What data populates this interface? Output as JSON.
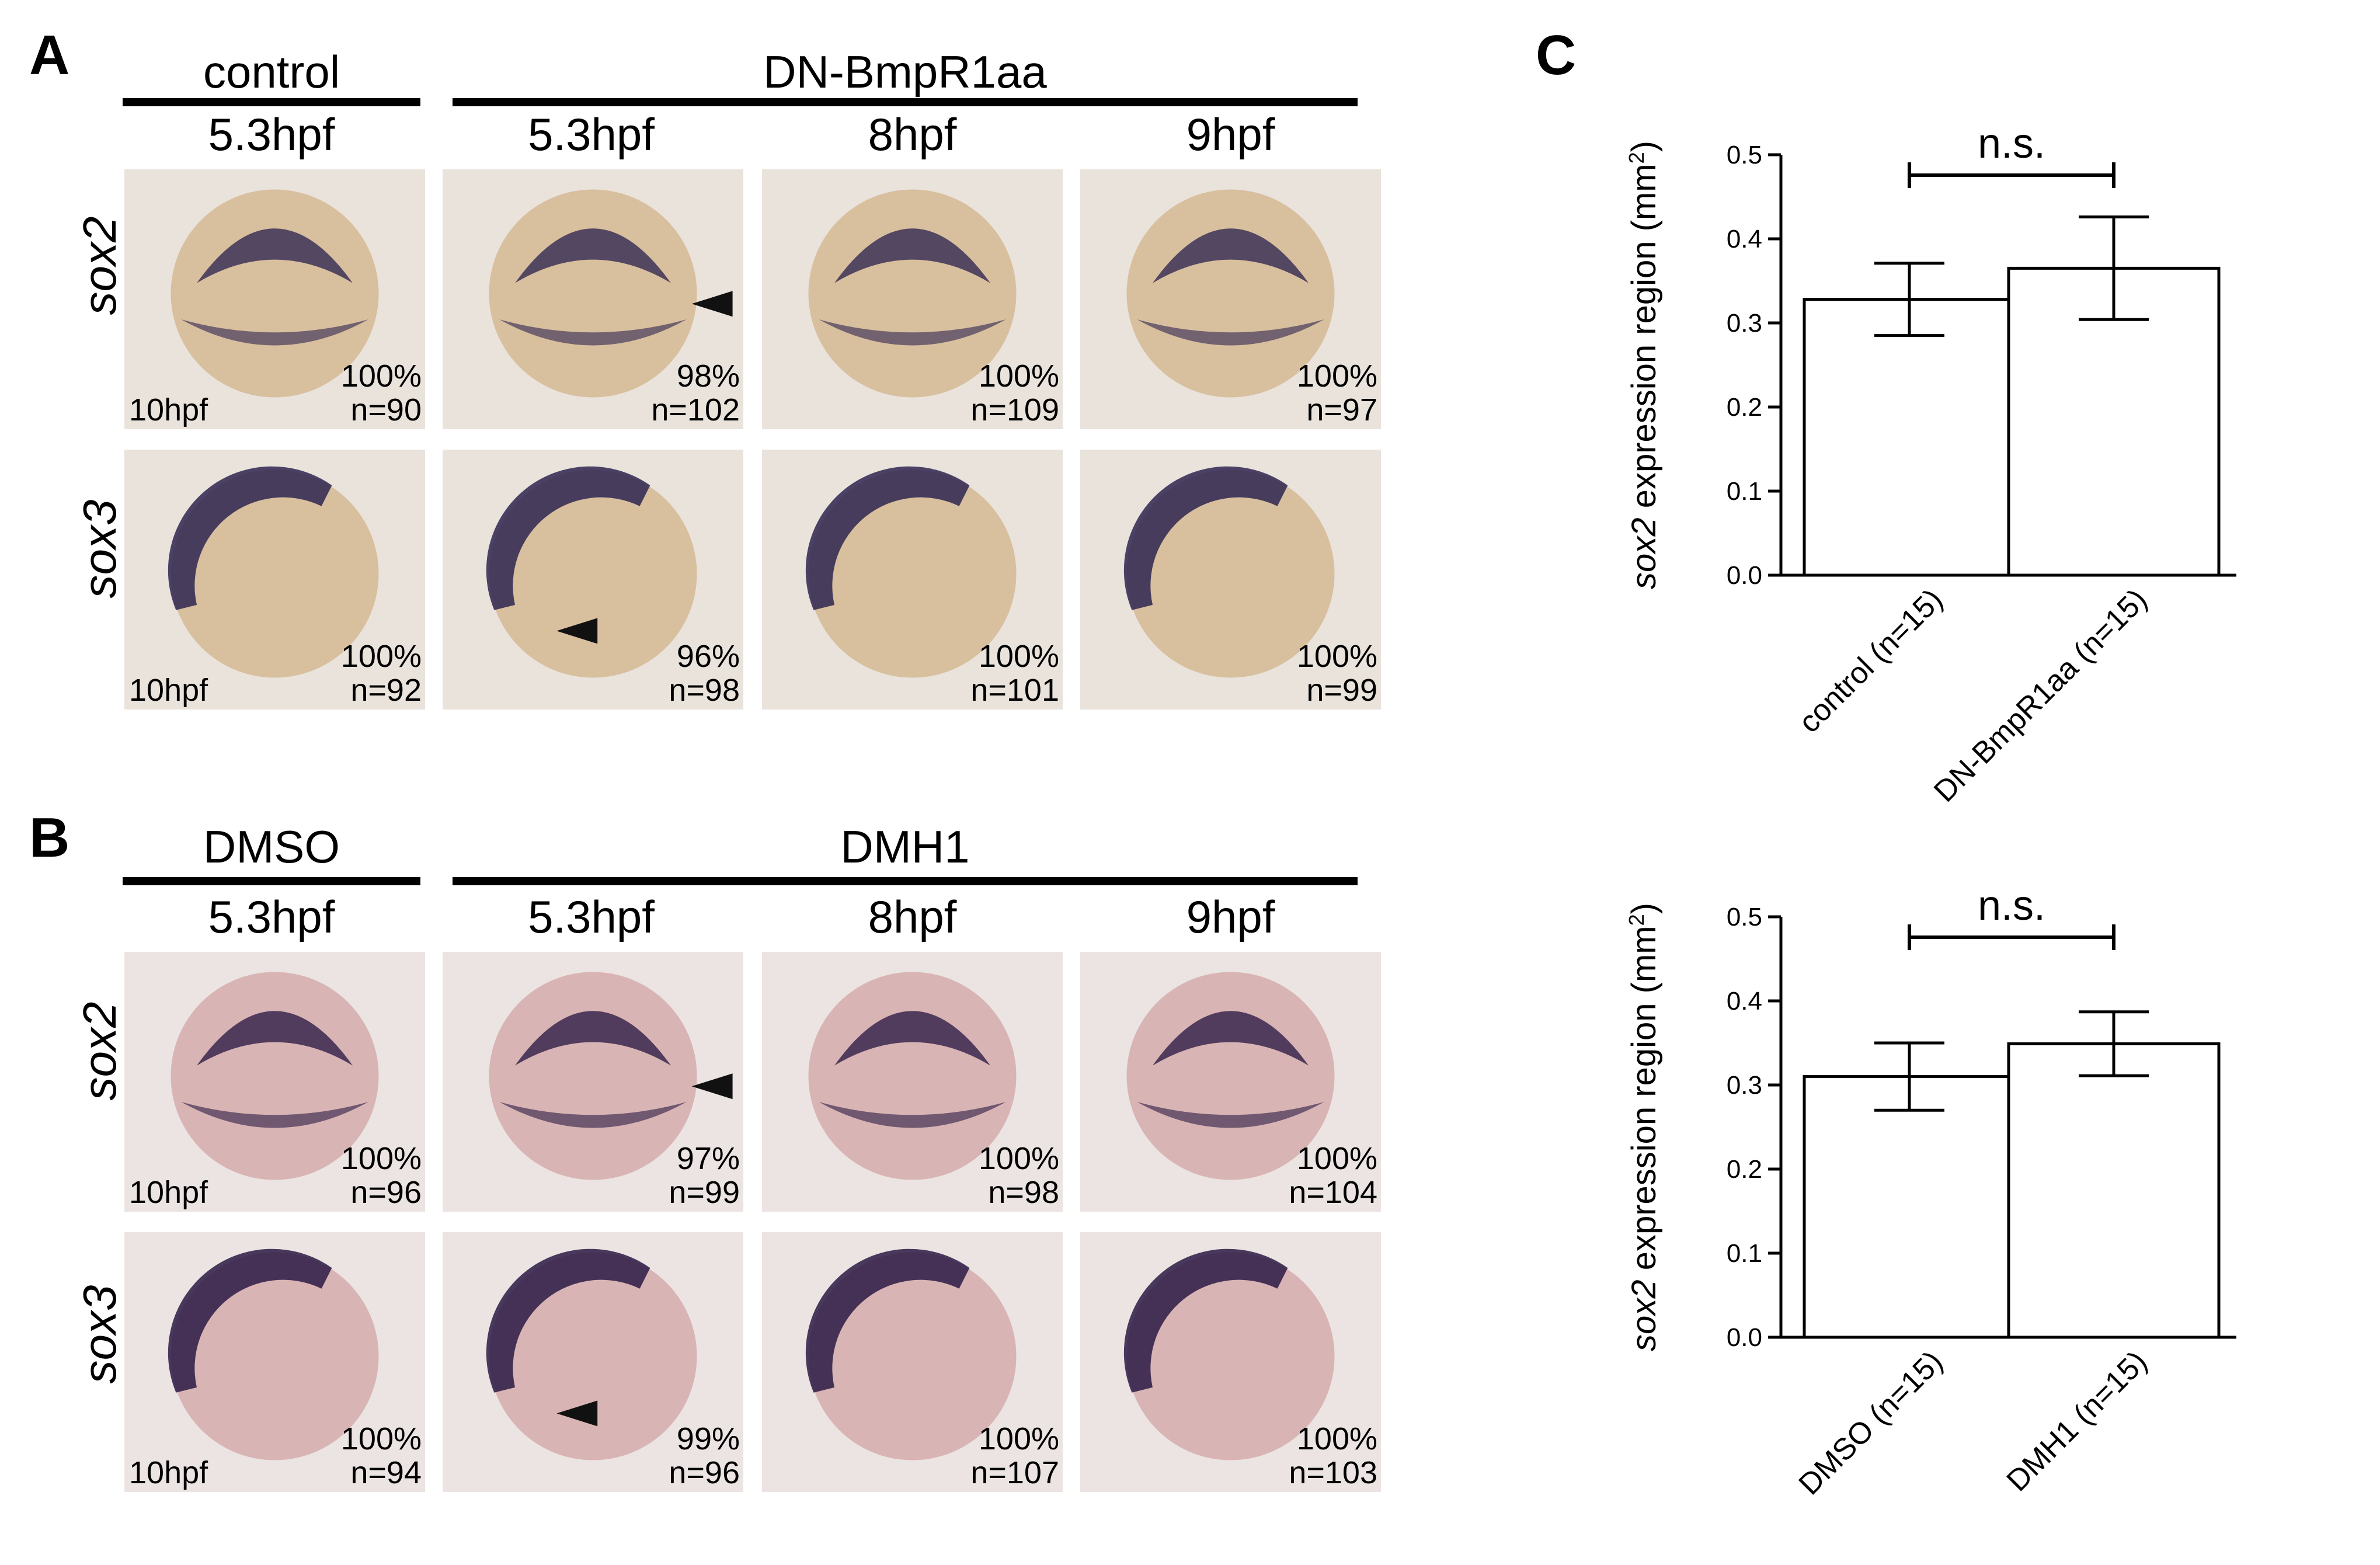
{
  "panels": {
    "A": {
      "letter": "A",
      "groups": [
        {
          "label": "control"
        },
        {
          "label": "DN-BmpR1aa"
        }
      ],
      "timepoints": [
        "5.3hpf",
        "5.3hpf",
        "8hpf",
        "9hpf"
      ],
      "rows": [
        {
          "gene": "sox2",
          "tiles": [
            {
              "stage": "10hpf",
              "pct": "100%",
              "n": "n=90"
            },
            {
              "stage": "",
              "pct": "98%",
              "n": "n=102"
            },
            {
              "stage": "",
              "pct": "100%",
              "n": "n=109"
            },
            {
              "stage": "",
              "pct": "100%",
              "n": "n=97"
            }
          ]
        },
        {
          "gene": "sox3",
          "tiles": [
            {
              "stage": "10hpf",
              "pct": "100%",
              "n": "n=92"
            },
            {
              "stage": "",
              "pct": "96%",
              "n": "n=98"
            },
            {
              "stage": "",
              "pct": "100%",
              "n": "n=101"
            },
            {
              "stage": "",
              "pct": "100%",
              "n": "n=99"
            }
          ]
        }
      ]
    },
    "B": {
      "letter": "B",
      "groups": [
        {
          "label": "DMSO"
        },
        {
          "label": "DMH1"
        }
      ],
      "timepoints": [
        "5.3hpf",
        "5.3hpf",
        "8hpf",
        "9hpf"
      ],
      "rows": [
        {
          "gene": "sox2",
          "tiles": [
            {
              "stage": "10hpf",
              "pct": "100%",
              "n": "n=96"
            },
            {
              "stage": "",
              "pct": "97%",
              "n": "n=99"
            },
            {
              "stage": "",
              "pct": "100%",
              "n": "n=98"
            },
            {
              "stage": "",
              "pct": "100%",
              "n": "n=104"
            }
          ]
        },
        {
          "gene": "sox3",
          "tiles": [
            {
              "stage": "10hpf",
              "pct": "100%",
              "n": "n=94"
            },
            {
              "stage": "",
              "pct": "99%",
              "n": "n=96"
            },
            {
              "stage": "",
              "pct": "100%",
              "n": "n=107"
            },
            {
              "stage": "",
              "pct": "100%",
              "n": "n=103"
            }
          ]
        }
      ]
    },
    "C": {
      "letter": "C"
    }
  },
  "colors": {
    "tileA": "#e9e3dc",
    "embryoA": "#d8bf9e",
    "stainA": "#2e2550",
    "tileB": "#ebe4e2",
    "embryoB": "#d9b4b4",
    "stainB": "#2a1a44"
  },
  "chart_data": [
    {
      "type": "bar",
      "categories": [
        "control (n=15)",
        "DN-BmpR1aa (n=15)"
      ],
      "values": [
        0.328,
        0.365
      ],
      "errors": [
        0.043,
        0.061
      ],
      "ylabel_italic": "sox2",
      "ylabel_rest": " expression region (mm",
      "ylabel_sup": "2",
      "ylabel_end": ")",
      "ylim": [
        0,
        0.5
      ],
      "yticks": [
        "0.0",
        "0.1",
        "0.2",
        "0.3",
        "0.4",
        "0.5"
      ],
      "significance": "n.s."
    },
    {
      "type": "bar",
      "categories": [
        "DMSO (n=15)",
        "DMH1 (n=15)"
      ],
      "values": [
        0.31,
        0.349
      ],
      "errors": [
        0.04,
        0.038
      ],
      "ylabel_italic": "sox2",
      "ylabel_rest": " expression region (mm",
      "ylabel_sup": "2",
      "ylabel_end": ")",
      "ylim": [
        0,
        0.5
      ],
      "yticks": [
        "0.0",
        "0.1",
        "0.2",
        "0.3",
        "0.4",
        "0.5"
      ],
      "significance": "n.s."
    }
  ]
}
